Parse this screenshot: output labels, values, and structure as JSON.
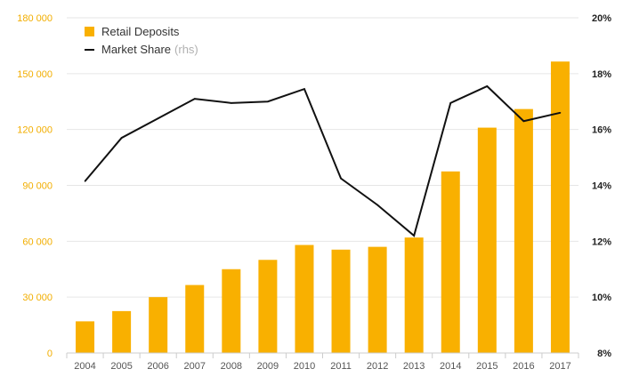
{
  "chart_data": {
    "type": "bar",
    "categories": [
      "2004",
      "2005",
      "2006",
      "2007",
      "2008",
      "2009",
      "2010",
      "2011",
      "2012",
      "2013",
      "2014",
      "2015",
      "2016",
      "2017"
    ],
    "series": [
      {
        "name": "Retail Deposits",
        "kind": "bar",
        "axis": "left",
        "values": [
          17000,
          22500,
          30000,
          36500,
          45000,
          50000,
          58000,
          55500,
          57000,
          62000,
          97500,
          121000,
          131000,
          156500
        ]
      },
      {
        "name": "Market Share",
        "kind": "line",
        "axis": "right",
        "values": [
          14.15,
          15.7,
          16.4,
          17.1,
          16.95,
          17.0,
          17.45,
          14.25,
          13.3,
          12.2,
          16.95,
          17.55,
          16.3,
          16.6
        ]
      }
    ],
    "left_axis": {
      "ylim": [
        0,
        180000
      ],
      "ticks": [
        0,
        30000,
        60000,
        90000,
        120000,
        150000,
        180000
      ],
      "tick_labels": [
        "0",
        "30 000",
        "60 000",
        "90 000",
        "120 000",
        "150 000",
        "180 000"
      ]
    },
    "right_axis": {
      "ylim": [
        8,
        20
      ],
      "ticks": [
        8,
        10,
        12,
        14,
        16,
        18,
        20
      ],
      "tick_labels": [
        "8%",
        "10%",
        "12%",
        "14%",
        "16%",
        "18%",
        "20%"
      ]
    },
    "legend": {
      "placement": "top-left",
      "entries": [
        {
          "label": "Retail Deposits",
          "suffix": ""
        },
        {
          "label": "Market Share",
          "suffix": "(rhs)"
        }
      ]
    },
    "grid": true,
    "colors": {
      "bar": "#f9b000",
      "line": "#111111",
      "left_ticks": "#f2ae00",
      "right_ticks": "#222222",
      "grid": "#e6e6e6"
    }
  }
}
